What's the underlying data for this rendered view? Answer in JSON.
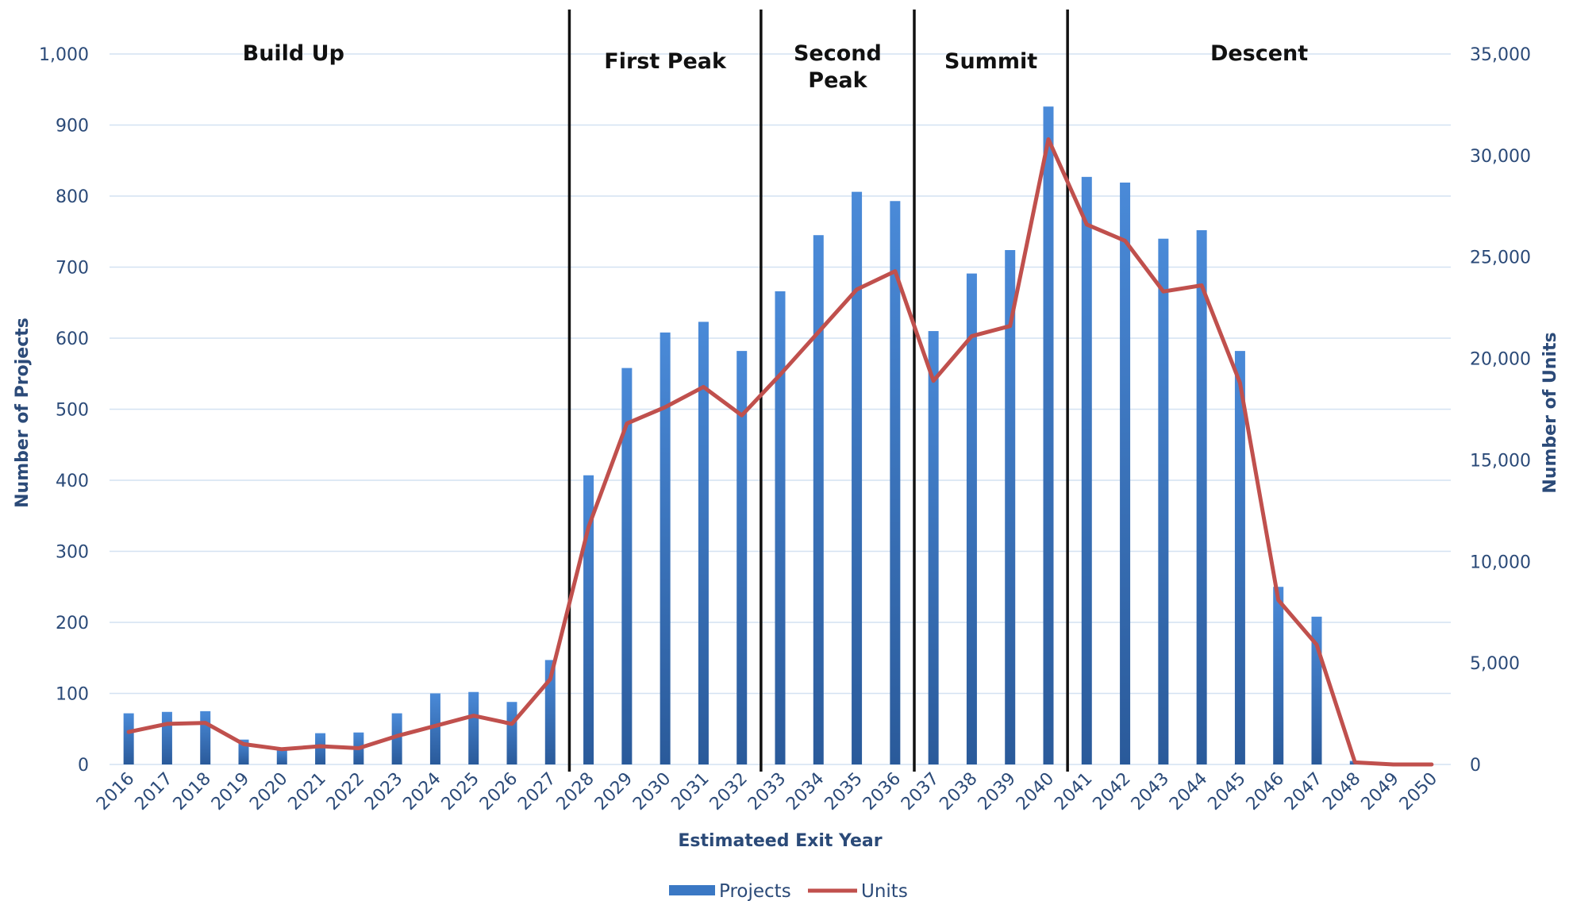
{
  "chart_data": {
    "type": "bar",
    "categories": [
      "2016",
      "2017",
      "2018",
      "2019",
      "2020",
      "2021",
      "2022",
      "2023",
      "2024",
      "2025",
      "2026",
      "2027",
      "2028",
      "2029",
      "2030",
      "2031",
      "2032",
      "2033",
      "2034",
      "2035",
      "2036",
      "2037",
      "2038",
      "2039",
      "2040",
      "2041",
      "2042",
      "2043",
      "2044",
      "2045",
      "2046",
      "2047",
      "2048",
      "2049",
      "2050"
    ],
    "series": [
      {
        "name": "Projects",
        "type": "bar",
        "axis": "left",
        "color": "#3a78c4",
        "values": [
          72,
          74,
          75,
          35,
          22,
          44,
          45,
          72,
          100,
          102,
          88,
          147,
          407,
          558,
          608,
          623,
          582,
          666,
          745,
          806,
          793,
          610,
          691,
          724,
          926,
          827,
          819,
          740,
          752,
          582,
          250,
          208,
          5,
          0,
          0
        ]
      },
      {
        "name": "Units",
        "type": "line",
        "axis": "right",
        "color": "#c0504d",
        "values": [
          1600,
          2000,
          2050,
          1000,
          750,
          900,
          800,
          1400,
          1900,
          2400,
          2000,
          4200,
          11700,
          16800,
          17600,
          18600,
          17200,
          19200,
          21300,
          23400,
          24300,
          18900,
          21100,
          21600,
          30800,
          26600,
          25800,
          23300,
          23600,
          18800,
          8100,
          5900,
          100,
          0,
          0
        ]
      }
    ],
    "xlabel": "Estimateed Exit Year",
    "ylabel": "Number of Projects",
    "ylabel_right": "Number of Units",
    "ylim": [
      0,
      1000
    ],
    "ylim_right": [
      0,
      35000
    ],
    "yticks": [
      "0",
      "100",
      "200",
      "300",
      "400",
      "500",
      "600",
      "700",
      "800",
      "900",
      "1,000"
    ],
    "yticks_right": [
      "0",
      "5,000",
      "10,000",
      "15,000",
      "20,000",
      "25,000",
      "30,000",
      "35,000"
    ],
    "grid": true,
    "legend": "bottom",
    "phases": [
      {
        "label_lines": [
          "Build Up"
        ],
        "start": "2016",
        "end": "2027"
      },
      {
        "label_lines": [
          "First Peak"
        ],
        "start": "2028",
        "end": "2032"
      },
      {
        "label_lines": [
          "Second",
          "Peak"
        ],
        "start": "2033",
        "end": "2036"
      },
      {
        "label_lines": [
          "Summit"
        ],
        "start": "2037",
        "end": "2040"
      },
      {
        "label_lines": [
          "Descent"
        ],
        "start": "2041",
        "end": "2050"
      }
    ]
  }
}
